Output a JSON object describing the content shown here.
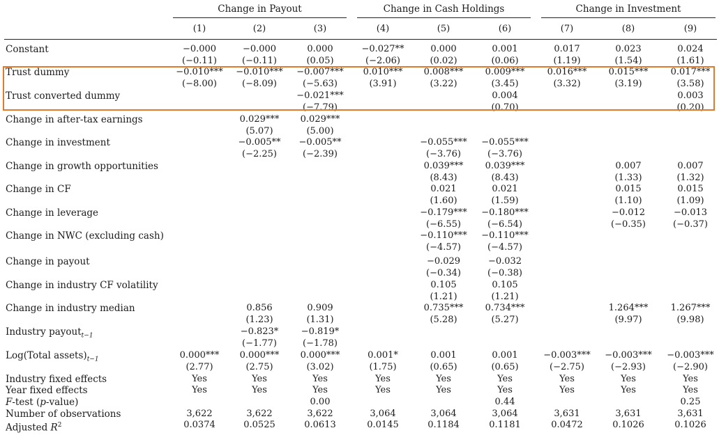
{
  "column_groups": [
    {
      "label": "Change in Payout"
    },
    {
      "label": "Change in Cash Holdings"
    },
    {
      "label": "Change in Investment"
    }
  ],
  "columns": [
    "(1)",
    "(2)",
    "(3)",
    "(4)",
    "(5)",
    "(6)",
    "(7)",
    "(8)",
    "(9)"
  ],
  "rows": [
    {
      "label": "Constant",
      "coef": [
        "−0.000",
        "−0.000",
        "0.000",
        "−0.027**",
        "0.000",
        "0.001",
        "0.017",
        "0.023",
        "0.024"
      ],
      "t": [
        "(−0.11)",
        "(−0.11)",
        "(0.05)",
        "(−2.06)",
        "(0.02)",
        "(0.06)",
        "(1.19)",
        "(1.54)",
        "(1.61)"
      ]
    },
    {
      "label": "Trust dummy",
      "coef": [
        "−0.010***",
        "−0.010***",
        "−0.007***",
        "0.010***",
        "0.008***",
        "0.009***",
        "0.016***",
        "0.015***",
        "0.017***"
      ],
      "t": [
        "(−8.00)",
        "(−8.09)",
        "(−5.63)",
        "(3.91)",
        "(3.22)",
        "(3.45)",
        "(3.32)",
        "(3.19)",
        "(3.58)"
      ]
    },
    {
      "label": "Trust converted dummy",
      "coef": [
        "",
        "",
        "−0.021***",
        "",
        "",
        "0.004",
        "",
        "",
        "0.003"
      ],
      "t": [
        "",
        "",
        "(−7.79)",
        "",
        "",
        "(0.70)",
        "",
        "",
        "(0.20)"
      ]
    },
    {
      "label": "Change in after-tax earnings",
      "coef": [
        "",
        "0.029***",
        "0.029***",
        "",
        "",
        "",
        "",
        "",
        ""
      ],
      "t": [
        "",
        "(5.07)",
        "(5.00)",
        "",
        "",
        "",
        "",
        "",
        ""
      ]
    },
    {
      "label": "Change in investment",
      "coef": [
        "",
        "−0.005**",
        "−0.005**",
        "",
        "−0.055***",
        "−0.055***",
        "",
        "",
        ""
      ],
      "t": [
        "",
        "(−2.25)",
        "(−2.39)",
        "",
        "(−3.76)",
        "(−3.76)",
        "",
        "",
        ""
      ]
    },
    {
      "label": "Change in growth opportunities",
      "coef": [
        "",
        "",
        "",
        "",
        "0.039***",
        "0.039***",
        "",
        "0.007",
        "0.007"
      ],
      "t": [
        "",
        "",
        "",
        "",
        "(8.43)",
        "(8.43)",
        "",
        "(1.33)",
        "(1.32)"
      ]
    },
    {
      "label": "Change in CF",
      "coef": [
        "",
        "",
        "",
        "",
        "0.021",
        "0.021",
        "",
        "0.015",
        "0.015"
      ],
      "t": [
        "",
        "",
        "",
        "",
        "(1.60)",
        "(1.59)",
        "",
        "(1.10)",
        "(1.09)"
      ]
    },
    {
      "label": "Change in leverage",
      "coef": [
        "",
        "",
        "",
        "",
        "−0.179***",
        "−0.180***",
        "",
        "−0.012",
        "−0.013"
      ],
      "t": [
        "",
        "",
        "",
        "",
        "(−6.55)",
        "(−6.54)",
        "",
        "(−0.35)",
        "(−0.37)"
      ]
    },
    {
      "label": "Change in NWC (excluding cash)",
      "coef": [
        "",
        "",
        "",
        "",
        "−0.110***",
        "−0.110***",
        "",
        "",
        ""
      ],
      "t": [
        "",
        "",
        "",
        "",
        "(−4.57)",
        "(−4.57)",
        "",
        "",
        ""
      ]
    },
    {
      "label": "Change in payout",
      "coef": [
        "",
        "",
        "",
        "",
        "−0.029",
        "−0.032",
        "",
        "",
        ""
      ],
      "t": [
        "",
        "",
        "",
        "",
        "(−0.34)",
        "(−0.38)",
        "",
        "",
        ""
      ]
    },
    {
      "label": "Change in industry CF volatility",
      "coef": [
        "",
        "",
        "",
        "",
        "0.105",
        "0.105",
        "",
        "",
        ""
      ],
      "t": [
        "",
        "",
        "",
        "",
        "(1.21)",
        "(1.21)",
        "",
        "",
        ""
      ]
    },
    {
      "label": "Change in industry median",
      "coef": [
        "",
        "0.856",
        "0.909",
        "",
        "0.735***",
        "0.734***",
        "",
        "1.264***",
        "1.267***"
      ],
      "t": [
        "",
        "(1.23)",
        "(1.31)",
        "",
        "(5.28)",
        "(5.27)",
        "",
        "(9.97)",
        "(9.98)"
      ]
    },
    {
      "label": "Industry payout",
      "sub": "t−1",
      "coef": [
        "",
        "−0.823*",
        "−0.819*",
        "",
        "",
        "",
        "",
        "",
        ""
      ],
      "t": [
        "",
        "(−1.77)",
        "(−1.78)",
        "",
        "",
        "",
        "",
        "",
        ""
      ]
    },
    {
      "label": "Log(Total assets)",
      "sub": "t−1",
      "coef": [
        "0.000***",
        "0.000***",
        "0.000***",
        "0.001*",
        "0.001",
        "0.001",
        "−0.003***",
        "−0.003***",
        "−0.003***"
      ],
      "t": [
        "(2.77)",
        "(2.75)",
        "(3.02)",
        "(1.75)",
        "(0.65)",
        "(0.65)",
        "(−2.75)",
        "(−2.93)",
        "(−2.90)"
      ]
    }
  ],
  "footer_rows": [
    {
      "label": "Industry fixed effects",
      "values": [
        "Yes",
        "Yes",
        "Yes",
        "Yes",
        "Yes",
        "Yes",
        "Yes",
        "Yes",
        "Yes"
      ]
    },
    {
      "label": "Year fixed effects",
      "values": [
        "Yes",
        "Yes",
        "Yes",
        "Yes",
        "Yes",
        "Yes",
        "Yes",
        "Yes",
        "Yes"
      ]
    },
    {
      "label_italic": "F",
      "label": "-test (",
      "label_italic2": "p",
      "label_tail": "-value)",
      "values": [
        "",
        "",
        "0.00",
        "",
        "",
        "0.44",
        "",
        "",
        "0.25"
      ]
    },
    {
      "label": "Number of observations",
      "values": [
        "3,622",
        "3,622",
        "3,622",
        "3,064",
        "3,064",
        "3,064",
        "3,631",
        "3,631",
        "3,631"
      ]
    },
    {
      "label": "Adjusted ",
      "label_italic": "R",
      "sup": "2",
      "values": [
        "0.0374",
        "0.0525",
        "0.0613",
        "0.0145",
        "0.1184",
        "0.1181",
        "0.0472",
        "0.1026",
        "0.1026"
      ]
    }
  ],
  "highlight_color": "#e07a2c"
}
